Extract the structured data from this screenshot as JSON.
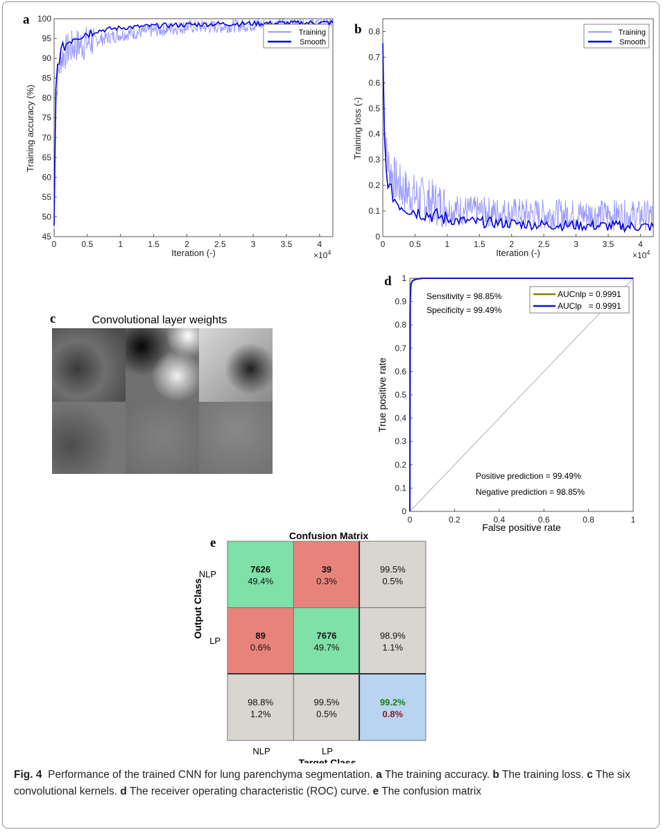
{
  "chart_data": [
    {
      "panel": "a",
      "type": "line",
      "xlabel": "Iteration (-)",
      "ylabel": "Training accuracy (%)",
      "x_exponent_label": "×10",
      "x_exponent_power": "4",
      "xlim": [
        0,
        4.2
      ],
      "ylim": [
        45,
        100
      ],
      "xticks": [
        "0",
        "0.5",
        "1",
        "1.5",
        "2",
        "2.5",
        "3",
        "3.5",
        "4"
      ],
      "yticks": [
        "45",
        "50",
        "55",
        "60",
        "65",
        "70",
        "75",
        "80",
        "85",
        "90",
        "95",
        "100"
      ],
      "legend_position": "top-right",
      "series": [
        {
          "name": "Training",
          "color": "#9999ff",
          "x": [
            0,
            0.02,
            0.05,
            0.1,
            0.15,
            0.2,
            0.3,
            0.5,
            0.75,
            1,
            1.5,
            2,
            2.5,
            3,
            3.5,
            4,
            4.2
          ],
          "y": [
            47,
            75,
            85,
            90,
            91,
            92,
            93,
            94,
            95,
            96,
            97,
            98,
            98,
            98.5,
            98.5,
            98.7,
            98.7
          ]
        },
        {
          "name": "Smooth",
          "color": "#0000dd",
          "x": [
            0,
            0.02,
            0.05,
            0.1,
            0.15,
            0.2,
            0.3,
            0.5,
            0.75,
            1,
            1.5,
            2,
            2.5,
            3,
            3.5,
            4,
            4.2
          ],
          "y": [
            47,
            80,
            88,
            91.5,
            93,
            94,
            95.5,
            96.5,
            97.2,
            97.7,
            98.2,
            98.5,
            98.7,
            98.8,
            98.9,
            99,
            99
          ]
        }
      ]
    },
    {
      "panel": "b",
      "type": "line",
      "xlabel": "Iteration (-)",
      "ylabel": "Training loss (-)",
      "x_exponent_label": "×10",
      "x_exponent_power": "4",
      "xlim": [
        0,
        4.2
      ],
      "ylim": [
        0,
        0.85
      ],
      "xticks": [
        "0",
        "0.5",
        "1",
        "1.5",
        "2",
        "2.5",
        "3",
        "3.5",
        "4"
      ],
      "yticks": [
        "0",
        "0.1",
        "0.2",
        "0.3",
        "0.4",
        "0.5",
        "0.6",
        "0.7",
        "0.8"
      ],
      "legend_position": "top-right",
      "series": [
        {
          "name": "Training",
          "color": "#9999ff",
          "x": [
            0,
            0.02,
            0.05,
            0.1,
            0.2,
            0.3,
            0.5,
            0.75,
            1,
            1.5,
            2,
            2.5,
            3,
            3.5,
            4,
            4.2
          ],
          "y": [
            0.72,
            0.45,
            0.3,
            0.24,
            0.19,
            0.16,
            0.13,
            0.11,
            0.09,
            0.08,
            0.075,
            0.07,
            0.07,
            0.068,
            0.065,
            0.065
          ]
        },
        {
          "name": "Smooth",
          "color": "#0000dd",
          "x": [
            0,
            0.02,
            0.05,
            0.1,
            0.2,
            0.3,
            0.5,
            0.75,
            1,
            1.5,
            2,
            2.5,
            3,
            3.5,
            4,
            4.2
          ],
          "y": [
            0.73,
            0.4,
            0.25,
            0.18,
            0.13,
            0.11,
            0.09,
            0.075,
            0.06,
            0.05,
            0.045,
            0.04,
            0.038,
            0.035,
            0.033,
            0.032
          ]
        }
      ]
    },
    {
      "panel": "d",
      "type": "line",
      "xlabel": "False positive rate",
      "ylabel": "True positive rate",
      "xlim": [
        0,
        1
      ],
      "ylim": [
        0,
        1
      ],
      "xticks": [
        "0",
        "0.2",
        "0.4",
        "0.6",
        "0.8",
        "1"
      ],
      "yticks": [
        "0",
        "0.1",
        "0.2",
        "0.3",
        "0.4",
        "0.5",
        "0.6",
        "0.7",
        "0.8",
        "0.9",
        "1"
      ],
      "legend_position": "top-right",
      "annotations": {
        "sensitivity": "Sensitivity = 98.85%",
        "specificity": "Specificity = 99.49%",
        "positive_prediction": "Positive prediction  = 99.49%",
        "negative_prediction": "Negative prediction = 98.85%"
      },
      "series": [
        {
          "name": "AUCnlp = 0.9991",
          "color": "#808000",
          "x": [
            0,
            0,
            0.003,
            0.01,
            0.02,
            0.05,
            1
          ],
          "y": [
            0,
            0.85,
            0.97,
            0.988,
            0.995,
            1,
            1
          ]
        },
        {
          "name": "AUClp   = 0.9991",
          "color": "#1010cc",
          "x": [
            0,
            0.002,
            0.005,
            0.012,
            0.03,
            0.06,
            1
          ],
          "y": [
            0,
            0.9,
            0.975,
            0.99,
            0.996,
            1,
            1
          ]
        },
        {
          "name": "",
          "color": "#bbbbbb",
          "x": [
            0,
            1
          ],
          "y": [
            0,
            1
          ]
        }
      ]
    },
    {
      "panel": "e",
      "type": "table",
      "title": "Confusion Matrix",
      "xlabel": "Target Class",
      "ylabel": "Output Class",
      "row_labels": [
        "NLP",
        "LP"
      ],
      "col_labels": [
        "NLP",
        "LP"
      ],
      "cells": [
        [
          {
            "count": "7626",
            "pct": "49.4%",
            "color": "#7fe0a8"
          },
          {
            "count": "39",
            "pct": "0.3%",
            "color": "#e8837c"
          },
          {
            "count": "99.5%",
            "pct": "0.5%",
            "color": "#d9d5d0"
          }
        ],
        [
          {
            "count": "89",
            "pct": "0.6%",
            "color": "#e8837c"
          },
          {
            "count": "7676",
            "pct": "49.7%",
            "color": "#7fe0a8"
          },
          {
            "count": "98.9%",
            "pct": "1.1%",
            "color": "#d9d5d0"
          }
        ],
        [
          {
            "count": "98.8%",
            "pct": "1.2%",
            "color": "#d9d5d0"
          },
          {
            "count": "99.5%",
            "pct": "0.5%",
            "color": "#d9d5d0"
          },
          {
            "count": "99.2%",
            "pct": "0.8%",
            "color": "#b8d4f0"
          }
        ]
      ]
    }
  ],
  "panels": {
    "a": "a",
    "b": "b",
    "c": "c",
    "d": "d",
    "e": "e",
    "c_title": "Convolutional layer weights"
  },
  "caption": {
    "label": "Fig. 4",
    "intro": "Performance of the trained CNN for lung parenchyma segmentation.",
    "a_letter": "a",
    "a_text": "The training accuracy.",
    "b_letter": "b",
    "b_text": "The training loss.",
    "c_letter": "c",
    "c_text": "The six convolutional kernels.",
    "d_letter": "d",
    "d_text": "The receiver operating characteristic (ROC) curve.",
    "e_letter": "e",
    "e_text": "The confusion matrix"
  }
}
